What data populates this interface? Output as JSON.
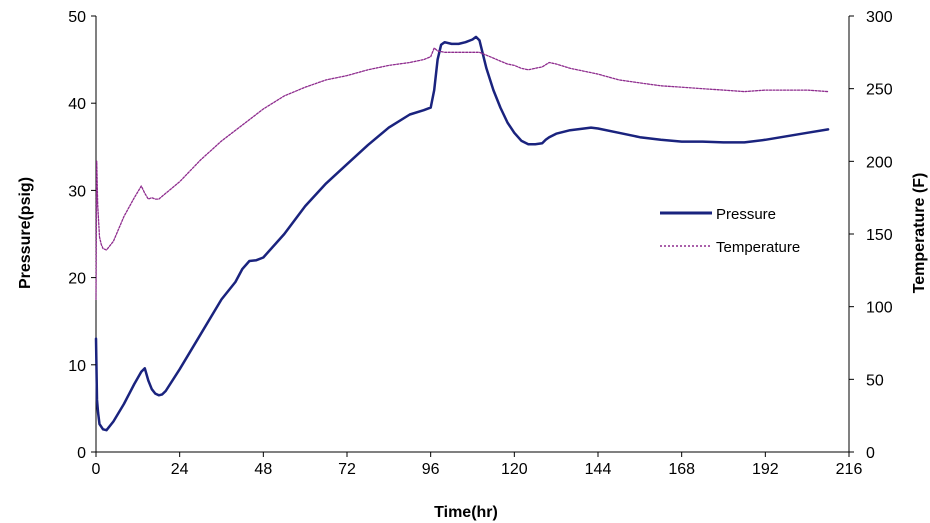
{
  "chart_data": {
    "type": "line",
    "xlabel": "Time(hr)",
    "ylabel_left": "Pressure(psig)",
    "ylabel_right": "Temperature (F)",
    "xlim": [
      0,
      216
    ],
    "ylim_left": [
      0,
      50
    ],
    "ylim_right": [
      0,
      300
    ],
    "x_ticks": [
      0,
      24,
      48,
      72,
      96,
      120,
      144,
      168,
      192,
      216
    ],
    "y_ticks_left": [
      0,
      10,
      20,
      30,
      40,
      50
    ],
    "y_ticks_right": [
      0,
      50,
      100,
      150,
      200,
      250,
      300
    ],
    "grid": false,
    "legend_position": "right",
    "series": [
      {
        "name": "Pressure",
        "axis": "left",
        "style": "solid",
        "color": "#1a237e",
        "x": [
          0,
          0.3,
          0.6,
          1,
          2,
          3,
          5,
          8,
          11,
          13,
          14,
          15,
          16,
          17,
          18,
          19,
          20,
          24,
          30,
          36,
          40,
          42,
          44,
          46,
          48,
          54,
          60,
          66,
          72,
          78,
          84,
          90,
          94,
          96,
          97,
          98,
          99,
          100,
          102,
          104,
          106,
          108,
          109,
          110,
          112,
          114,
          116,
          118,
          120,
          122,
          124,
          126,
          128,
          129,
          130,
          132,
          136,
          140,
          142,
          144,
          150,
          156,
          162,
          168,
          174,
          180,
          186,
          192,
          198,
          204,
          210
        ],
        "y": [
          13,
          6,
          4.5,
          3.2,
          2.6,
          2.5,
          3.5,
          5.5,
          7.8,
          9.2,
          9.6,
          8.2,
          7.2,
          6.7,
          6.5,
          6.6,
          7,
          9.5,
          13.5,
          17.5,
          19.5,
          21,
          21.9,
          22,
          22.3,
          25,
          28.2,
          30.8,
          33,
          35.2,
          37.2,
          38.7,
          39.2,
          39.5,
          41.5,
          45,
          46.7,
          47,
          46.8,
          46.8,
          47,
          47.3,
          47.6,
          47.2,
          44,
          41.5,
          39.5,
          37.8,
          36.6,
          35.7,
          35.3,
          35.3,
          35.4,
          35.8,
          36.1,
          36.5,
          36.9,
          37.1,
          37.2,
          37.1,
          36.6,
          36.1,
          35.8,
          35.6,
          35.6,
          35.5,
          35.5,
          35.8,
          36.2,
          36.6,
          37
        ]
      },
      {
        "name": "Temperature",
        "axis": "right",
        "style": "dotted",
        "color": "#8e2c8e",
        "x": [
          0,
          0.2,
          0.5,
          1,
          1.5,
          2,
          3,
          5,
          8,
          11,
          13,
          14,
          15,
          16,
          17,
          18,
          20,
          24,
          30,
          36,
          42,
          48,
          54,
          60,
          66,
          72,
          78,
          84,
          90,
          94,
          96,
          97,
          98,
          100,
          104,
          108,
          110,
          112,
          114,
          116,
          118,
          120,
          122,
          124,
          126,
          128,
          130,
          132,
          136,
          140,
          144,
          150,
          156,
          162,
          168,
          174,
          180,
          186,
          192,
          198,
          204,
          210
        ],
        "y": [
          105,
          200,
          170,
          148,
          143,
          140,
          139,
          145,
          162,
          175,
          183,
          178,
          174,
          175,
          174,
          174,
          178,
          186,
          201,
          214,
          225,
          236,
          245,
          251,
          256,
          259,
          263,
          266,
          268,
          270,
          272,
          278,
          276,
          275,
          275,
          275,
          275,
          273,
          271,
          269,
          267,
          266,
          264,
          263,
          264,
          265,
          268,
          267,
          264,
          262,
          260,
          256,
          254,
          252,
          251,
          250,
          249,
          248,
          249,
          249,
          249,
          248
        ]
      }
    ]
  }
}
